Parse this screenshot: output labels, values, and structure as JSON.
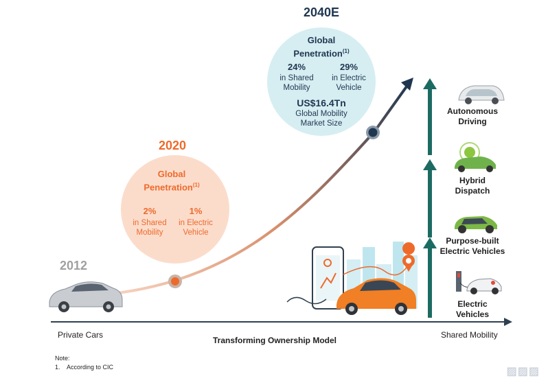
{
  "timeline": {
    "year_2012": "2012",
    "year_2020": "2020",
    "year_2040": "2040E"
  },
  "panel_2020": {
    "title": "Global",
    "title2": "Penetration",
    "footnote_mark": "(1)",
    "stat1": {
      "value": "2%",
      "label1": "in Shared",
      "label2": "Mobility"
    },
    "stat2": {
      "value": "1%",
      "label1": "in Electric",
      "label2": "Vehicle"
    }
  },
  "panel_2040": {
    "title": "Global",
    "title2": "Penetration",
    "footnote_mark": "(1)",
    "stat1": {
      "value": "24%",
      "label1": "in Shared",
      "label2": "Mobility"
    },
    "stat2": {
      "value": "29%",
      "label1": "in Electric",
      "label2": "Vehicle"
    },
    "market": {
      "value": "US$16.4Tn",
      "label1": "Global Mobility",
      "label2": "Market Size"
    }
  },
  "stages": {
    "autonomous": {
      "line1": "Autonomous",
      "line2": "Driving"
    },
    "hybrid": {
      "line1": "Hybrid",
      "line2": "Dispatch"
    },
    "purpose": {
      "line1": "Purpose-built",
      "line2": "Electric Vehicles"
    },
    "electric": {
      "line1": "Electric",
      "line2": "Vehicles"
    }
  },
  "axis": {
    "left": "Private Cars",
    "center": "Transforming Ownership Model",
    "right": "Shared Mobility"
  },
  "note": {
    "heading": "Note:",
    "item": "1.    According to CIC"
  },
  "colors": {
    "orange": "#ee6a2b",
    "navy": "#1f3650",
    "teal": "#1c6b62",
    "peach": "#fbdccb",
    "lightblue": "#d6eef2"
  }
}
